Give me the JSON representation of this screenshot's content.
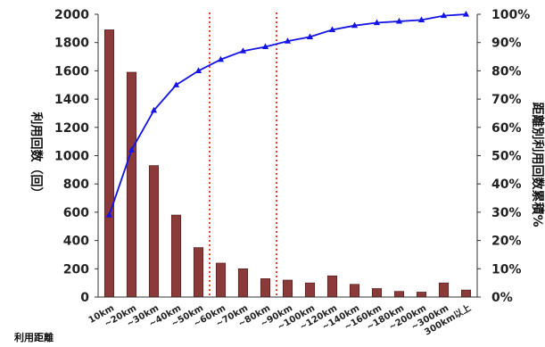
{
  "chart_data": {
    "type": "bar",
    "title": "",
    "categories": [
      "10km",
      "~20km",
      "~30km",
      "~40km",
      "~50km",
      "~60km",
      "~70km",
      "~80km",
      "~90km",
      "~100km",
      "~120km",
      "~140km",
      "~160km",
      "~180km",
      "~200km",
      "~300km",
      "300km以上"
    ],
    "series": [
      {
        "type": "bar",
        "values": [
          1890,
          1590,
          930,
          580,
          350,
          240,
          200,
          130,
          120,
          100,
          150,
          90,
          60,
          40,
          35,
          100,
          50
        ],
        "color": "#8b3a3a"
      },
      {
        "type": "line",
        "axis": "right",
        "values": [
          29,
          52,
          66,
          75,
          80,
          84,
          87,
          88.5,
          90.5,
          92,
          94.5,
          96,
          97,
          97.5,
          98,
          99.5,
          100
        ],
        "color": "#1414e6"
      }
    ],
    "ylabel_left": "利用回数（回）",
    "ylabel_right": "距離別利用回数累積%",
    "xlabel": "利用距離",
    "ylim_left": [
      0,
      2000
    ],
    "yticks_left": [
      "0",
      "200",
      "400",
      "600",
      "800",
      "1000",
      "1200",
      "1400",
      "1600",
      "1800",
      "2000"
    ],
    "ylim_right": [
      0,
      100
    ],
    "yticks_right": [
      "0%",
      "10%",
      "20%",
      "30%",
      "40%",
      "50%",
      "60%",
      "70%",
      "80%",
      "90%",
      "100%"
    ],
    "reference_lines": [
      {
        "between": [
          "~50km",
          "~60km"
        ],
        "style": "dotted",
        "color": "#e03020"
      },
      {
        "between": [
          "~80km",
          "~90km"
        ],
        "style": "dotted",
        "color": "#e03020"
      }
    ],
    "grid": false,
    "legend": "none"
  }
}
